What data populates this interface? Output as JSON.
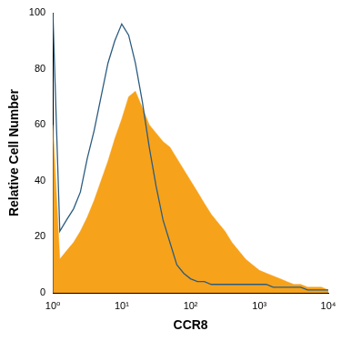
{
  "chart_data": {
    "type": "line",
    "x_label": "CCR8",
    "y_label": "Relative Cell Number",
    "log": "x",
    "grid": false,
    "x": [
      1,
      1.26,
      1.58,
      2,
      2.51,
      3.16,
      3.98,
      5.01,
      6.31,
      7.94,
      10,
      12.6,
      15.8,
      20,
      25.1,
      31.6,
      39.8,
      50.1,
      63.1,
      79.4,
      100,
      126,
      158,
      200,
      251,
      316,
      398,
      501,
      631,
      794,
      1000,
      1259,
      1585,
      1995,
      2512,
      3162,
      3981,
      5012,
      6310,
      7943,
      10000
    ],
    "series": [
      {
        "type": "area",
        "color": "#f7a21b",
        "values": [
          60,
          12,
          15,
          18,
          22,
          27,
          33,
          40,
          47,
          55,
          62,
          70,
          72,
          66,
          60,
          57,
          54,
          52,
          48,
          44,
          40,
          36,
          32,
          28,
          25,
          22,
          18,
          15,
          12,
          10,
          8,
          7,
          6,
          5,
          4,
          3,
          3,
          2,
          2,
          2,
          1
        ]
      },
      {
        "type": "line",
        "color": "#2b5c80",
        "values": [
          100,
          22,
          26,
          30,
          36,
          48,
          58,
          70,
          82,
          90,
          96,
          92,
          82,
          68,
          52,
          38,
          26,
          18,
          10,
          7,
          5,
          4,
          4,
          3,
          3,
          3,
          3,
          3,
          3,
          3,
          3,
          3,
          2,
          2,
          2,
          2,
          2,
          1,
          1,
          1,
          1
        ]
      }
    ],
    "xlim": [
      1,
      10000
    ],
    "xticks": [
      {
        "value": 1,
        "label": "10⁰"
      },
      {
        "value": 10,
        "label": "10¹"
      },
      {
        "value": 100,
        "label": "10²"
      },
      {
        "value": 1000,
        "label": "10³"
      },
      {
        "value": 10000,
        "label": "10⁴"
      }
    ],
    "ylim": [
      0,
      100
    ],
    "yticks": [
      0,
      20,
      40,
      60,
      80,
      100
    ]
  }
}
